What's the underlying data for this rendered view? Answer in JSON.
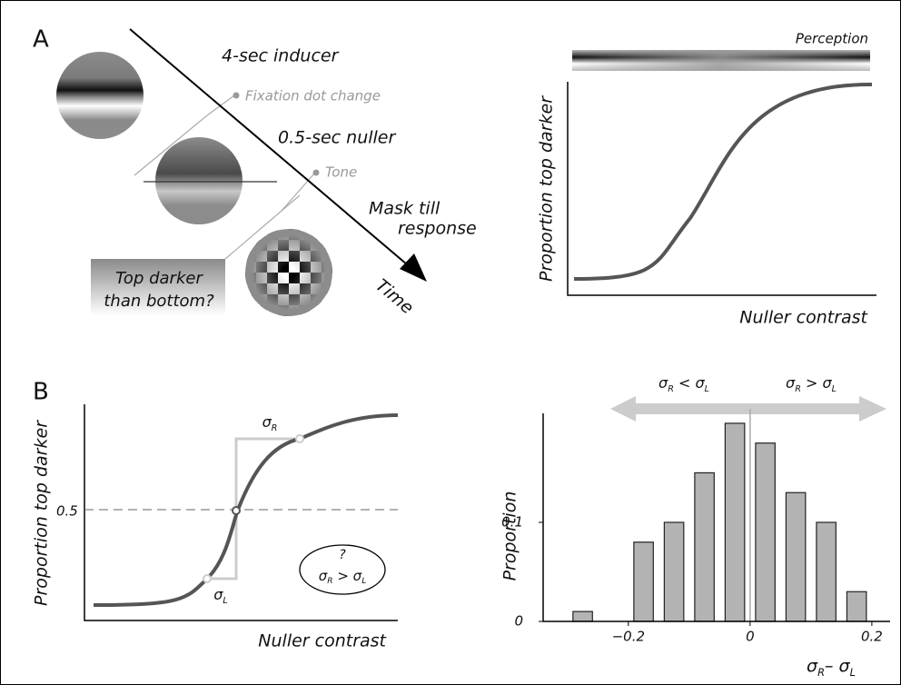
{
  "panel_a": {
    "label": "A",
    "inducer": "4-sec inducer",
    "fixation": "Fixation dot change",
    "nuller": "0.5-sec nuller",
    "tone": "Tone",
    "mask": [
      "Mask till",
      "response"
    ],
    "time": "Time",
    "question": [
      "Top darker",
      "than bottom?"
    ],
    "perception": "Perception",
    "ylabel": "Proportion top darker",
    "xlabel": "Nuller contrast"
  },
  "panel_b": {
    "label": "B",
    "ylabel": "Proportion top darker",
    "xlabel": "Nuller contrast",
    "half": "0.5",
    "sigma_r": [
      {
        "t": "σ",
        "sub": "R"
      }
    ],
    "sigma_l": [
      {
        "t": "σ",
        "sub": "L"
      }
    ],
    "question_mark": "?",
    "question": [
      {
        "t": "σ",
        "sub": "R"
      },
      {
        "t": " > σ",
        "sub": "L"
      }
    ]
  },
  "chart_data": {
    "type": "histogram",
    "bins": [
      -0.3,
      -0.25,
      -0.2,
      -0.15,
      -0.1,
      -0.05,
      0,
      0.05,
      0.1,
      0.15,
      0.2
    ],
    "values": [
      0.01,
      0,
      0.08,
      0.1,
      0.15,
      0.2,
      0.18,
      0.13,
      0.1,
      0.03
    ],
    "color": "#b3b3b3",
    "xlim": [
      -0.34,
      0.23
    ],
    "ylim": [
      0,
      0.21
    ],
    "xticks": [
      {
        "value": -0.2,
        "label": "−0.2"
      },
      0,
      0.2
    ],
    "yticks": [
      0,
      0.1
    ],
    "ylabel": "Proportion",
    "xlabel": [
      {
        "t": "σ",
        "sub": "R"
      },
      {
        "t": "– σ",
        "sub": "L"
      }
    ],
    "arrow_left": [
      {
        "t": "σ",
        "sub": "R"
      },
      {
        "t": " < σ",
        "sub": "L"
      }
    ],
    "arrow_right": [
      {
        "t": "σ",
        "sub": "R"
      },
      {
        "t": " > σ",
        "sub": "L"
      }
    ]
  }
}
